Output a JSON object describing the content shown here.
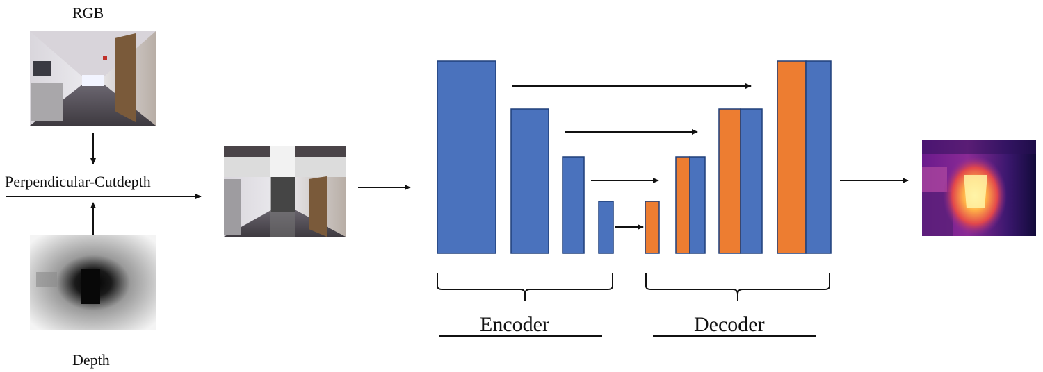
{
  "labels": {
    "rgb": "RGB",
    "depth": "Depth",
    "operation": "Perpendicular-Cutdepth",
    "encoder": "Encoder",
    "decoder": "Decoder"
  },
  "colors": {
    "encoder_block": "#4a72bd",
    "decoder_block": "#ed7d31",
    "stroke": "#1f3f7a",
    "arrow": "#111111"
  },
  "icons": {
    "rgb_image": "rgb-corridor-photo",
    "depth_image": "grayscale-depth-map",
    "augmented_image": "perpendicular-cutdepth-composite",
    "output_image": "predicted-depth-heatmap"
  }
}
